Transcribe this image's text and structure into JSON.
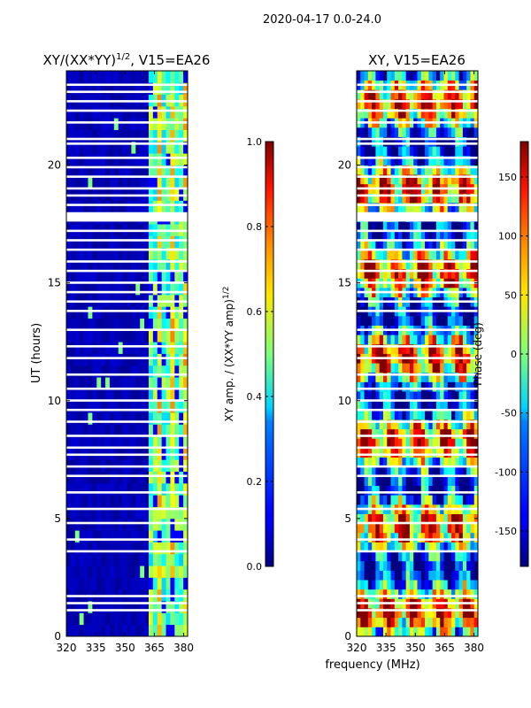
{
  "suptitle": "2020-04-17 0.0-24.0",
  "chart_data": [
    {
      "type": "heatmap",
      "title_main": "XY/(XX*YY)",
      "title_exp": "1/2",
      "title_tail": ", V15=EA26",
      "xlabel": "",
      "ylabel": "UT (hours)",
      "xlim": [
        320,
        382
      ],
      "ylim": [
        0,
        24
      ],
      "xticks": [
        "320",
        "335",
        "350",
        "365",
        "380"
      ],
      "yticks": [
        "0",
        "5",
        "10",
        "15",
        "20"
      ],
      "colorbar": {
        "label_main": "XY amp. / (XX*YY amp)",
        "label_exp": "1/2",
        "range": [
          0.0,
          1.0
        ],
        "ticks": [
          "0.0",
          "0.2",
          "0.4",
          "0.6",
          "0.8",
          "1.0"
        ]
      }
    },
    {
      "type": "heatmap",
      "title": "XY, V15=EA26",
      "xlabel": "frequency (MHz)",
      "ylabel": "",
      "xlim": [
        320,
        382
      ],
      "ylim": [
        0,
        24
      ],
      "xticks": [
        "320",
        "335",
        "350",
        "365",
        "380"
      ],
      "yticks": [
        "0",
        "5",
        "10",
        "15",
        "20"
      ],
      "colorbar": {
        "label": "Phase (deg)",
        "range": [
          -180,
          180
        ],
        "ticks": [
          "-150",
          "-100",
          "-50",
          "0",
          "50",
          "100",
          "150"
        ]
      }
    }
  ],
  "flagged_ut_hours": [
    23.4,
    23.1,
    22.7,
    22.3,
    21.8,
    21.1,
    20.9,
    20.3,
    19.9,
    19.5,
    19.0,
    18.7,
    18.3,
    17.7,
    17.2,
    16.8,
    16.4,
    15.9,
    15.5,
    15.0,
    14.6,
    14.2,
    13.8,
    13.0,
    12.3,
    11.8,
    11.1,
    10.5,
    10.0,
    9.6,
    9.1,
    8.5,
    8.0,
    7.7,
    7.2,
    6.8,
    6.1,
    5.4,
    4.8,
    4.1,
    3.6,
    1.7,
    1.4,
    1.1
  ]
}
